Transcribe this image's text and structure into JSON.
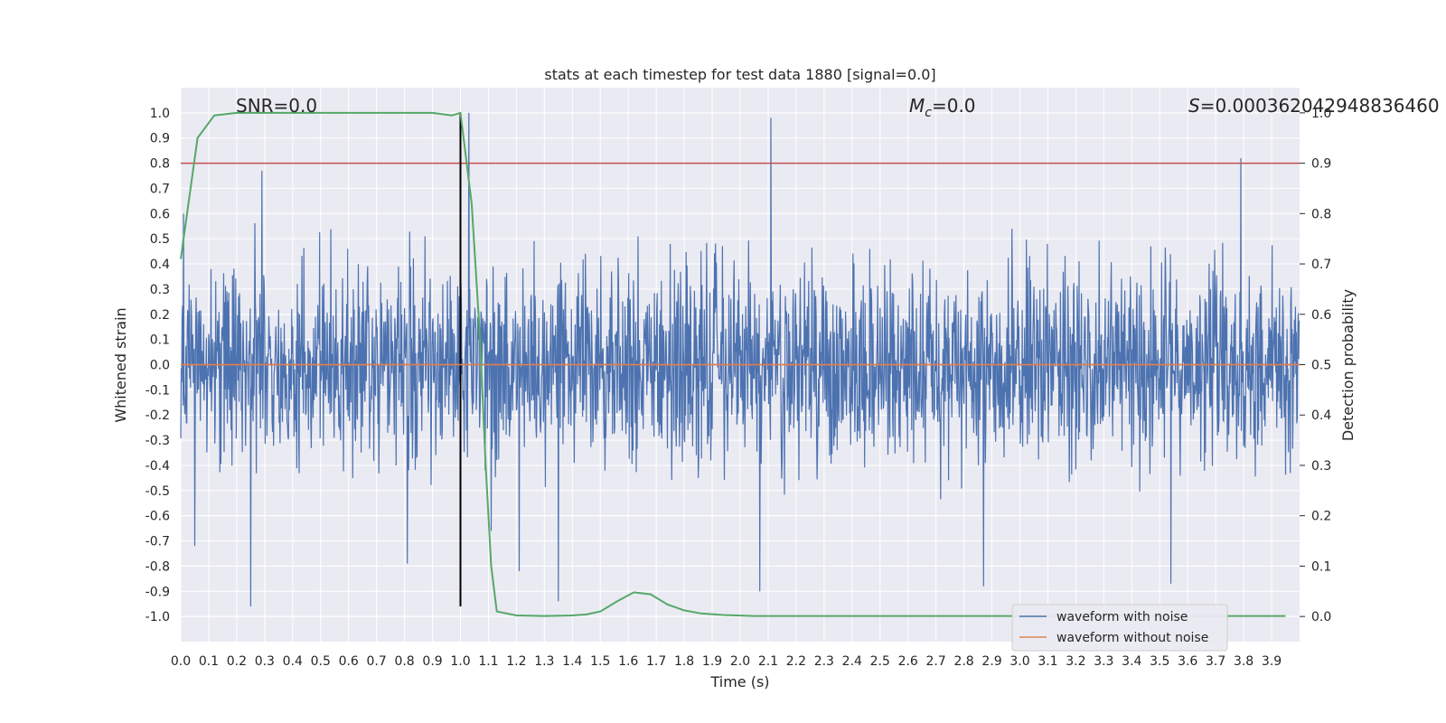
{
  "chart_data": {
    "type": "line",
    "title": "stats at each timestep for test data 1880 [signal=0.0]",
    "xlabel": "Time (s)",
    "ylabel": "Whitened strain",
    "ylabel_right": "Detection probability",
    "xlim": [
      0.0,
      4.0
    ],
    "ylim": [
      -1.1,
      1.1
    ],
    "ylim_right": [
      -0.05,
      1.05
    ],
    "x_ticks": [
      "0.0",
      "0.1",
      "0.2",
      "0.3",
      "0.4",
      "0.5",
      "0.6",
      "0.7",
      "0.8",
      "0.9",
      "1.0",
      "1.1",
      "1.2",
      "1.3",
      "1.4",
      "1.5",
      "1.6",
      "1.7",
      "1.8",
      "1.9",
      "2.0",
      "2.1",
      "2.2",
      "2.3",
      "2.4",
      "2.5",
      "2.6",
      "2.7",
      "2.8",
      "2.9",
      "3.0",
      "3.1",
      "3.2",
      "3.3",
      "3.4",
      "3.5",
      "3.6",
      "3.7",
      "3.8",
      "3.9"
    ],
    "y_ticks": [
      "1.0",
      "0.9",
      "0.8",
      "0.7",
      "0.6",
      "0.5",
      "0.4",
      "0.3",
      "0.2",
      "0.1",
      "0.0",
      "-0.1",
      "-0.2",
      "-0.3",
      "-0.4",
      "-0.5",
      "-0.6",
      "-0.7",
      "-0.8",
      "-0.9",
      "-1.0"
    ],
    "y_ticks_right": [
      "1.0",
      "0.9",
      "0.8",
      "0.7",
      "0.6",
      "0.5",
      "0.4",
      "0.3",
      "0.2",
      "0.1",
      "0.0"
    ],
    "grid": true,
    "legend_position": "lower-right",
    "annotations": {
      "snr": "SNR=0.0",
      "mc_symbol": "M",
      "mc_sub": "c",
      "mc_value": "=0.0",
      "s_symbol": "S",
      "s_value": "=0.000362042948836460"
    },
    "series": [
      {
        "name": "waveform with noise",
        "color": "#4c72b0",
        "axis": "left",
        "noise_envelope": {
          "typical_amplitude": 0.35,
          "max": 1.0,
          "min": -0.96
        },
        "notable_peaks": [
          {
            "x": 0.01,
            "y": 0.6
          },
          {
            "x": 0.05,
            "y": -0.72
          },
          {
            "x": 0.25,
            "y": -0.96
          },
          {
            "x": 0.29,
            "y": 0.77
          },
          {
            "x": 0.81,
            "y": -0.79
          },
          {
            "x": 1.03,
            "y": 1.0
          },
          {
            "x": 1.11,
            "y": -0.66
          },
          {
            "x": 1.21,
            "y": -0.82
          },
          {
            "x": 1.35,
            "y": -0.94
          },
          {
            "x": 2.07,
            "y": -0.9
          },
          {
            "x": 2.11,
            "y": 0.98
          },
          {
            "x": 2.87,
            "y": -0.88
          },
          {
            "x": 3.54,
            "y": -0.87
          },
          {
            "x": 3.79,
            "y": 0.82
          }
        ]
      },
      {
        "name": "waveform without noise",
        "color": "#dd8452",
        "axis": "left",
        "x": [
          0.0,
          4.0
        ],
        "y": [
          0.0,
          0.0
        ]
      },
      {
        "name": "",
        "color": "#55a868",
        "axis": "right",
        "x": [
          0.0,
          0.06,
          0.12,
          0.2,
          0.3,
          0.5,
          0.7,
          0.9,
          0.97,
          1.0,
          1.04,
          1.07,
          1.09,
          1.11,
          1.13,
          1.2,
          1.3,
          1.4,
          1.45,
          1.5,
          1.56,
          1.62,
          1.68,
          1.74,
          1.8,
          1.86,
          1.94,
          2.05,
          2.3,
          2.6,
          3.0,
          3.5,
          3.95
        ],
        "y": [
          0.71,
          0.95,
          0.995,
          1.0,
          1.0,
          1.0,
          1.0,
          1.0,
          0.995,
          1.0,
          0.82,
          0.55,
          0.3,
          0.1,
          0.01,
          0.002,
          0.001,
          0.002,
          0.004,
          0.01,
          0.03,
          0.048,
          0.044,
          0.024,
          0.012,
          0.006,
          0.003,
          0.001,
          0.001,
          0.001,
          0.001,
          0.001,
          0.001
        ]
      }
    ],
    "reference_lines": [
      {
        "axis": "right",
        "y": 0.9,
        "color": "#c44e52"
      },
      {
        "axis": "right",
        "y": 0.5,
        "color": "#c44e52"
      },
      {
        "axis": "x",
        "x": 1.0,
        "color": "#000000",
        "y_range": [
          -0.96,
          1.0
        ]
      }
    ]
  }
}
